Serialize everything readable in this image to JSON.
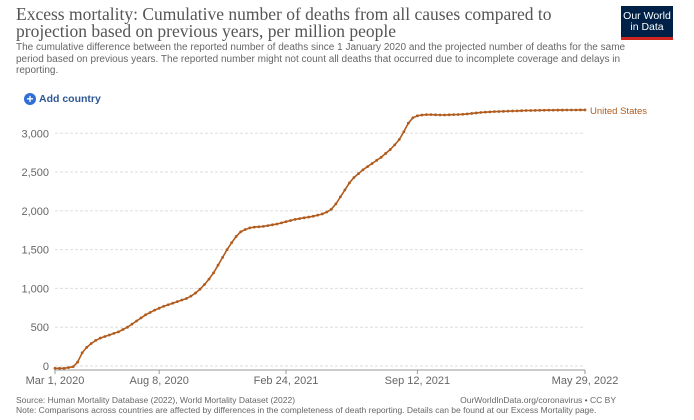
{
  "header": {
    "title": "Excess mortality: Cumulative number of deaths from all causes compared to projection based on previous years, per million people",
    "subtitle": "The cumulative difference between the reported number of deaths since 1 January 2020 and the projected number of deaths for the same period based on previous years. The reported number might not count all deaths that occurred due to incomplete coverage and delays in reporting.",
    "logo_line1": "Our World",
    "logo_line2": "in Data"
  },
  "controls": {
    "add_country_label": "Add country"
  },
  "footer": {
    "source": "Source: Human Mortality Database (2022), World Mortality Dataset (2022)",
    "link": "OurWorldInData.org/coronavirus • CC BY",
    "note": "Note: Comparisons across countries are affected by differences in the completeness of death reporting. Details can be found at our Excess Mortality page."
  },
  "colors": {
    "series": "#b15c1e",
    "grid": "#dddddd",
    "axis": "#666666"
  },
  "chart_data": {
    "type": "line",
    "title": "Excess mortality: Cumulative number of deaths from all causes compared to projection based on previous years, per million people",
    "xlabel": "",
    "ylabel": "",
    "ylim": [
      0,
      3300
    ],
    "yticks": [
      0,
      500,
      1000,
      1500,
      2000,
      2500,
      3000
    ],
    "ytick_labels": [
      "0",
      "500",
      "1,000",
      "1,500",
      "2,000",
      "2,500",
      "3,000"
    ],
    "xlim": [
      0,
      117
    ],
    "xticks": [
      0,
      23,
      51,
      80,
      117
    ],
    "xtick_labels": [
      "Mar 1, 2020",
      "Aug 8, 2020",
      "Feb 24, 2021",
      "Sep 12, 2021",
      "May 29, 2022"
    ],
    "grid": true,
    "series": [
      {
        "name": "United States",
        "x": [
          0,
          1,
          2,
          3,
          4,
          5,
          6,
          7,
          8,
          9,
          10,
          11,
          12,
          13,
          14,
          15,
          16,
          17,
          18,
          19,
          20,
          21,
          22,
          23,
          24,
          25,
          26,
          27,
          28,
          29,
          30,
          31,
          32,
          33,
          34,
          35,
          36,
          37,
          38,
          39,
          40,
          41,
          42,
          43,
          44,
          45,
          46,
          47,
          48,
          49,
          50,
          51,
          52,
          53,
          54,
          55,
          56,
          57,
          58,
          59,
          60,
          61,
          62,
          63,
          64,
          65,
          66,
          67,
          68,
          69,
          70,
          71,
          72,
          73,
          74,
          75,
          76,
          77,
          78,
          79,
          80,
          81,
          82,
          83,
          84,
          85,
          86,
          87,
          88,
          89,
          90,
          91,
          92,
          93,
          94,
          95,
          96,
          97,
          98,
          99,
          100,
          101,
          102,
          103,
          104,
          105,
          106,
          107,
          108,
          109,
          110,
          111,
          112,
          113,
          114,
          115,
          116,
          117
        ],
        "values": [
          -30,
          -30,
          -30,
          -20,
          -10,
          50,
          170,
          240,
          290,
          330,
          360,
          380,
          400,
          420,
          440,
          470,
          500,
          540,
          580,
          620,
          660,
          690,
          720,
          745,
          770,
          790,
          810,
          830,
          850,
          870,
          900,
          940,
          990,
          1050,
          1120,
          1200,
          1300,
          1400,
          1500,
          1590,
          1670,
          1730,
          1760,
          1780,
          1790,
          1795,
          1800,
          1810,
          1820,
          1830,
          1845,
          1860,
          1875,
          1890,
          1900,
          1910,
          1920,
          1930,
          1945,
          1960,
          1985,
          2020,
          2090,
          2180,
          2270,
          2360,
          2430,
          2480,
          2530,
          2570,
          2610,
          2650,
          2690,
          2740,
          2790,
          2850,
          2920,
          3020,
          3130,
          3200,
          3225,
          3235,
          3240,
          3240,
          3238,
          3236,
          3236,
          3238,
          3240,
          3242,
          3245,
          3250,
          3256,
          3262,
          3268,
          3272,
          3276,
          3279,
          3281,
          3283,
          3285,
          3287,
          3289,
          3291,
          3293,
          3294,
          3295,
          3296,
          3297,
          3298,
          3298,
          3299,
          3299,
          3300,
          3300,
          3300,
          3301,
          3301
        ]
      }
    ]
  }
}
